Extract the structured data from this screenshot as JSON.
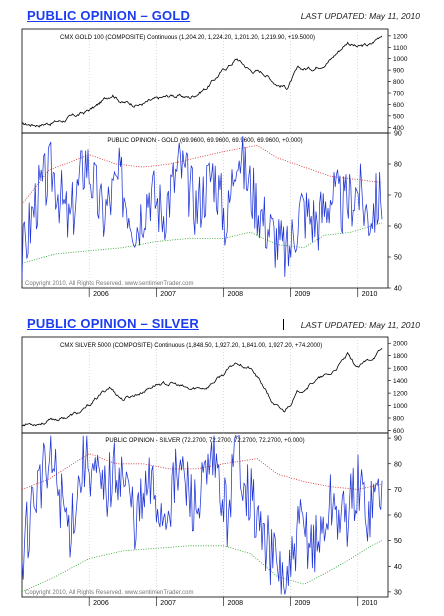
{
  "colors": {
    "title": "#1b3cf2",
    "price": "#000000",
    "opinion": "#1f35d6",
    "upper_band": "#d92020",
    "lower_band": "#22a022",
    "grid": "#b5b5b5"
  },
  "chart_data": [
    {
      "section": "gold",
      "section_title": "PUBLIC OPINION – GOLD",
      "last_updated": "LAST UPDATED:  May 11, 2010",
      "price": {
        "type": "line",
        "title": "CMX GOLD 100 (COMPOSITE) Continuous (1,204.20, 1,224.20, 1,201.20, 1,219.90, +19.5000)",
        "ylim": [
          350,
          1260
        ],
        "yticks": [
          400,
          500,
          600,
          700,
          800,
          900,
          1000,
          1100,
          1200
        ],
        "x": [
          2005.0,
          2005.3,
          2005.6,
          2005.9,
          2006.1,
          2006.35,
          2006.5,
          2006.75,
          2007.0,
          2007.25,
          2007.5,
          2007.75,
          2008.0,
          2008.2,
          2008.4,
          2008.6,
          2008.8,
          2008.95,
          2009.1,
          2009.35,
          2009.6,
          2009.85,
          2010.0,
          2010.2,
          2010.36
        ],
        "y": [
          420,
          430,
          460,
          520,
          580,
          700,
          620,
          600,
          640,
          680,
          660,
          750,
          900,
          1000,
          900,
          880,
          780,
          750,
          900,
          920,
          1000,
          1150,
          1100,
          1120,
          1220
        ]
      },
      "opinion": {
        "type": "line",
        "title": "PUBLIC OPINION - GOLD (69.9600, 69.9600, 69.9600, 69.9600, +0.000)",
        "ylim": [
          40,
          90
        ],
        "yticks": [
          40,
          50,
          60,
          70,
          80,
          90
        ],
        "level_keypoints": [
          [
            2005.0,
            49
          ],
          [
            2005.2,
            68
          ],
          [
            2005.45,
            78
          ],
          [
            2005.7,
            60
          ],
          [
            2005.95,
            82
          ],
          [
            2006.2,
            63
          ],
          [
            2006.45,
            75
          ],
          [
            2006.7,
            60
          ],
          [
            2006.9,
            72
          ],
          [
            2007.1,
            64
          ],
          [
            2007.35,
            80
          ],
          [
            2007.6,
            66
          ],
          [
            2007.85,
            78
          ],
          [
            2008.05,
            60
          ],
          [
            2008.2,
            87
          ],
          [
            2008.35,
            75
          ],
          [
            2008.6,
            62
          ],
          [
            2008.8,
            55
          ],
          [
            2008.95,
            50
          ],
          [
            2009.15,
            66
          ],
          [
            2009.4,
            61
          ],
          [
            2009.6,
            70
          ],
          [
            2009.8,
            66
          ],
          [
            2010.0,
            72
          ],
          [
            2010.15,
            63
          ],
          [
            2010.36,
            70
          ]
        ],
        "upper_band_keypoints": [
          [
            2005.0,
            67
          ],
          [
            2005.4,
            78
          ],
          [
            2006.0,
            83
          ],
          [
            2006.4,
            80
          ],
          [
            2006.8,
            79
          ],
          [
            2007.2,
            80
          ],
          [
            2007.6,
            82
          ],
          [
            2008.0,
            84
          ],
          [
            2008.5,
            86
          ],
          [
            2008.8,
            82
          ],
          [
            2009.2,
            79
          ],
          [
            2009.6,
            76
          ],
          [
            2010.0,
            75
          ],
          [
            2010.36,
            74
          ]
        ],
        "lower_band_keypoints": [
          [
            2005.0,
            48
          ],
          [
            2005.5,
            51
          ],
          [
            2006.0,
            52
          ],
          [
            2006.5,
            53
          ],
          [
            2007.0,
            55
          ],
          [
            2007.5,
            56
          ],
          [
            2008.0,
            56
          ],
          [
            2008.4,
            58
          ],
          [
            2008.8,
            54
          ],
          [
            2009.2,
            53
          ],
          [
            2009.5,
            57
          ],
          [
            2009.9,
            58
          ],
          [
            2010.2,
            60
          ],
          [
            2010.36,
            61
          ]
        ]
      },
      "copyright": "Copyright 2010, All Rights Reserved. www.sentimenTrader.com",
      "x_tick_labels": [
        "2006",
        "2007",
        "2008",
        "2009",
        "2010"
      ]
    },
    {
      "section": "silver",
      "section_title": "PUBLIC OPINION – SILVER",
      "last_updated": "LAST UPDATED:  May 11, 2010",
      "price": {
        "type": "line",
        "title": "CMX SILVER 5000 (COMPOSITE) Continuous (1,848.50, 1,927.20, 1,841.00, 1,927.20, +74.2000)",
        "ylim": [
          560,
          2100
        ],
        "yticks": [
          600,
          800,
          1000,
          1200,
          1400,
          1600,
          1800,
          2000
        ],
        "x": [
          2005.0,
          2005.3,
          2005.6,
          2005.9,
          2006.1,
          2006.3,
          2006.5,
          2006.75,
          2007.0,
          2007.25,
          2007.5,
          2007.75,
          2008.0,
          2008.2,
          2008.4,
          2008.6,
          2008.75,
          2008.9,
          2009.1,
          2009.35,
          2009.6,
          2009.85,
          2010.0,
          2010.2,
          2010.36
        ],
        "y": [
          700,
          730,
          800,
          900,
          1100,
          1300,
          1100,
          1200,
          1350,
          1350,
          1250,
          1300,
          1500,
          1700,
          1600,
          1300,
          1000,
          900,
          1200,
          1400,
          1500,
          1800,
          1600,
          1750,
          1900
        ]
      },
      "opinion": {
        "type": "line",
        "title": "PUBLIC OPINION - SILVER (72.2700, 72.2700, 72.2700, 72.2700, +0.000)",
        "ylim": [
          28,
          92
        ],
        "yticks": [
          30,
          40,
          50,
          60,
          70,
          80,
          90
        ],
        "level_keypoints": [
          [
            2005.0,
            45
          ],
          [
            2005.2,
            70
          ],
          [
            2005.45,
            80
          ],
          [
            2005.7,
            55
          ],
          [
            2005.95,
            85
          ],
          [
            2006.2,
            68
          ],
          [
            2006.45,
            80
          ],
          [
            2006.7,
            58
          ],
          [
            2006.9,
            72
          ],
          [
            2007.1,
            60
          ],
          [
            2007.35,
            78
          ],
          [
            2007.6,
            62
          ],
          [
            2007.85,
            80
          ],
          [
            2008.05,
            60
          ],
          [
            2008.2,
            88
          ],
          [
            2008.35,
            72
          ],
          [
            2008.6,
            50
          ],
          [
            2008.8,
            40
          ],
          [
            2008.95,
            32
          ],
          [
            2009.15,
            55
          ],
          [
            2009.4,
            48
          ],
          [
            2009.6,
            65
          ],
          [
            2009.8,
            58
          ],
          [
            2010.0,
            72
          ],
          [
            2010.15,
            62
          ],
          [
            2010.36,
            72
          ]
        ],
        "upper_band_keypoints": [
          [
            2005.0,
            70
          ],
          [
            2005.4,
            74
          ],
          [
            2006.0,
            84
          ],
          [
            2006.4,
            80
          ],
          [
            2006.8,
            80
          ],
          [
            2007.2,
            78
          ],
          [
            2007.6,
            78
          ],
          [
            2008.0,
            80
          ],
          [
            2008.5,
            82
          ],
          [
            2008.8,
            76
          ],
          [
            2009.2,
            73
          ],
          [
            2009.6,
            71
          ],
          [
            2010.0,
            70
          ],
          [
            2010.36,
            72
          ]
        ],
        "lower_band_keypoints": [
          [
            2005.0,
            30
          ],
          [
            2005.5,
            36
          ],
          [
            2006.0,
            43
          ],
          [
            2006.5,
            46
          ],
          [
            2007.0,
            47
          ],
          [
            2007.5,
            48
          ],
          [
            2008.0,
            48
          ],
          [
            2008.4,
            45
          ],
          [
            2008.8,
            36
          ],
          [
            2009.2,
            33
          ],
          [
            2009.5,
            37
          ],
          [
            2009.9,
            43
          ],
          [
            2010.2,
            48
          ],
          [
            2010.36,
            50
          ]
        ]
      },
      "copyright": "Copyright 2010, All Rights Reserved. www.sentimenTrader.com",
      "x_tick_labels": [
        "2006",
        "2007",
        "2008",
        "2009",
        "2010"
      ]
    }
  ]
}
